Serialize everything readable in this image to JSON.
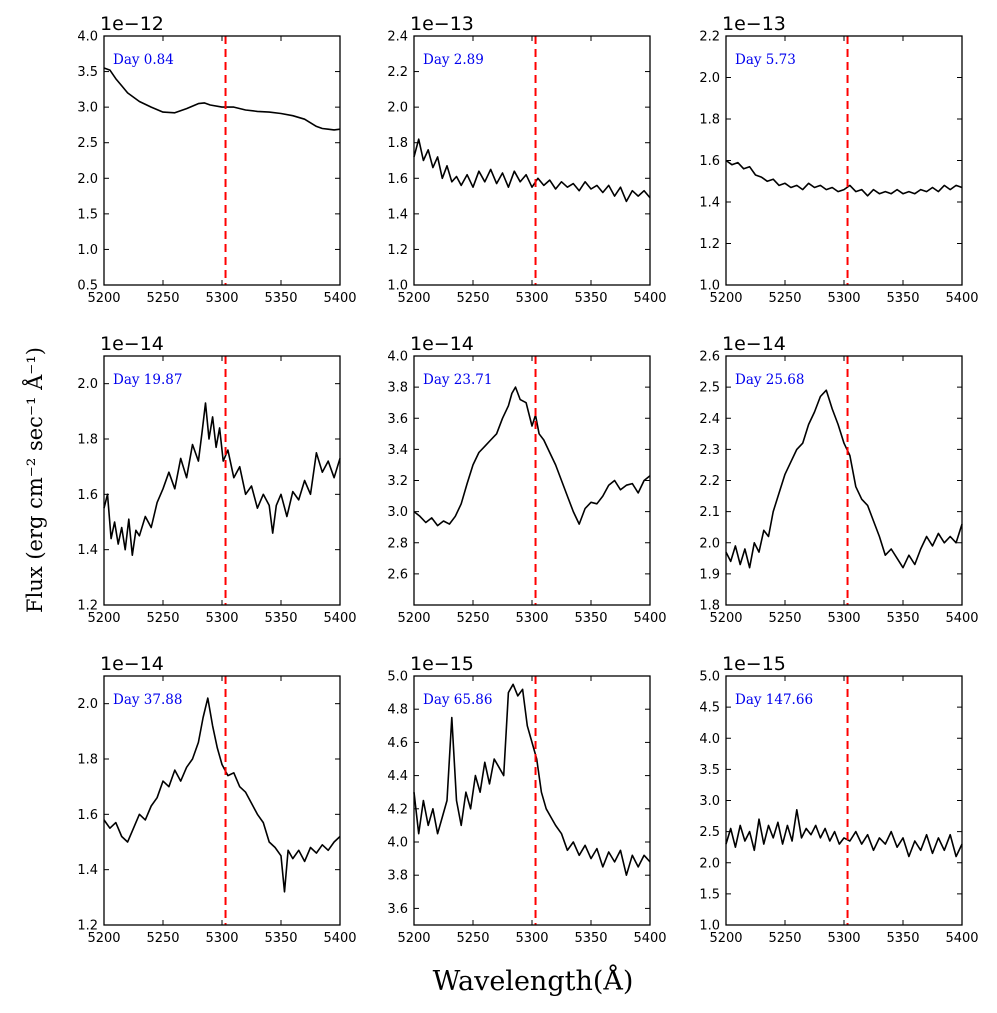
{
  "figure": {
    "xlabel": "Wavelength(Å)",
    "ylabel": "Flux (erg cm⁻² sec⁻¹ Å⁻¹)",
    "marker_color": "#ff0000",
    "line_color": "#000000",
    "label_color": "#0000ee"
  },
  "chart_data": [
    {
      "type": "line",
      "label": "Day 0.84",
      "exponent": "1e−12",
      "xlim": [
        5200,
        5400
      ],
      "ylim": [
        0.5,
        4.0
      ],
      "xticks": [
        5200,
        5250,
        5300,
        5350,
        5400
      ],
      "yticks": [
        "0.5",
        "1.0",
        "1.5",
        "2.0",
        "2.5",
        "3.0",
        "3.5",
        "4.0"
      ],
      "marker_x": 5303,
      "x": [
        5200,
        5205,
        5210,
        5215,
        5220,
        5230,
        5240,
        5250,
        5260,
        5270,
        5280,
        5285,
        5290,
        5300,
        5310,
        5320,
        5330,
        5340,
        5350,
        5360,
        5370,
        5380,
        5385,
        5390,
        5395,
        5400
      ],
      "y": [
        3.55,
        3.52,
        3.4,
        3.3,
        3.2,
        3.08,
        3.0,
        2.93,
        2.92,
        2.98,
        3.05,
        3.06,
        3.03,
        3.0,
        3.0,
        2.96,
        2.94,
        2.93,
        2.91,
        2.88,
        2.83,
        2.73,
        2.7,
        2.69,
        2.68,
        2.69
      ]
    },
    {
      "type": "line",
      "label": "Day 2.89",
      "exponent": "1e−13",
      "xlim": [
        5200,
        5400
      ],
      "ylim": [
        1.0,
        2.4
      ],
      "xticks": [
        5200,
        5250,
        5300,
        5350,
        5400
      ],
      "yticks": [
        "1.0",
        "1.2",
        "1.4",
        "1.6",
        "1.8",
        "2.0",
        "2.2",
        "2.4"
      ],
      "marker_x": 5303,
      "x": [
        5200,
        5204,
        5208,
        5212,
        5216,
        5220,
        5224,
        5228,
        5232,
        5236,
        5240,
        5245,
        5250,
        5255,
        5260,
        5265,
        5270,
        5275,
        5280,
        5285,
        5290,
        5295,
        5300,
        5305,
        5310,
        5315,
        5320,
        5325,
        5330,
        5335,
        5340,
        5345,
        5350,
        5355,
        5360,
        5365,
        5370,
        5375,
        5380,
        5385,
        5390,
        5395,
        5400
      ],
      "y": [
        1.72,
        1.82,
        1.7,
        1.76,
        1.66,
        1.72,
        1.6,
        1.67,
        1.58,
        1.61,
        1.56,
        1.62,
        1.55,
        1.64,
        1.58,
        1.65,
        1.57,
        1.63,
        1.55,
        1.64,
        1.58,
        1.62,
        1.55,
        1.6,
        1.56,
        1.59,
        1.54,
        1.58,
        1.55,
        1.57,
        1.53,
        1.58,
        1.54,
        1.56,
        1.52,
        1.56,
        1.5,
        1.55,
        1.47,
        1.53,
        1.5,
        1.53,
        1.49
      ]
    },
    {
      "type": "line",
      "label": "Day 5.73",
      "exponent": "1e−13",
      "xlim": [
        5200,
        5400
      ],
      "ylim": [
        1.0,
        2.2
      ],
      "xticks": [
        5200,
        5250,
        5300,
        5350,
        5400
      ],
      "yticks": [
        "1.0",
        "1.2",
        "1.4",
        "1.6",
        "1.8",
        "2.0",
        "2.2"
      ],
      "marker_x": 5303,
      "x": [
        5200,
        5205,
        5210,
        5215,
        5220,
        5225,
        5230,
        5235,
        5240,
        5245,
        5250,
        5255,
        5260,
        5265,
        5270,
        5275,
        5280,
        5285,
        5290,
        5295,
        5300,
        5305,
        5310,
        5315,
        5320,
        5325,
        5330,
        5335,
        5340,
        5345,
        5350,
        5355,
        5360,
        5365,
        5370,
        5375,
        5380,
        5385,
        5390,
        5395,
        5400
      ],
      "y": [
        1.6,
        1.58,
        1.59,
        1.56,
        1.57,
        1.53,
        1.52,
        1.5,
        1.51,
        1.48,
        1.49,
        1.47,
        1.48,
        1.46,
        1.49,
        1.47,
        1.48,
        1.46,
        1.47,
        1.45,
        1.46,
        1.48,
        1.45,
        1.46,
        1.43,
        1.46,
        1.44,
        1.45,
        1.44,
        1.46,
        1.44,
        1.45,
        1.44,
        1.46,
        1.45,
        1.47,
        1.45,
        1.48,
        1.46,
        1.48,
        1.47
      ]
    },
    {
      "type": "line",
      "label": "Day 19.87",
      "exponent": "1e−14",
      "xlim": [
        5200,
        5400
      ],
      "ylim": [
        1.2,
        2.1
      ],
      "xticks": [
        5200,
        5250,
        5300,
        5350,
        5400
      ],
      "yticks": [
        "1.2",
        "1.4",
        "1.6",
        "1.8",
        "2.0"
      ],
      "marker_x": 5303,
      "x": [
        5200,
        5203,
        5206,
        5209,
        5212,
        5215,
        5218,
        5221,
        5224,
        5227,
        5230,
        5235,
        5240,
        5245,
        5250,
        5255,
        5260,
        5265,
        5270,
        5275,
        5280,
        5283,
        5286,
        5289,
        5292,
        5295,
        5298,
        5301,
        5305,
        5310,
        5315,
        5320,
        5325,
        5330,
        5335,
        5340,
        5343,
        5346,
        5350,
        5355,
        5360,
        5365,
        5370,
        5375,
        5380,
        5385,
        5390,
        5395,
        5400
      ],
      "y": [
        1.55,
        1.6,
        1.44,
        1.5,
        1.42,
        1.48,
        1.4,
        1.51,
        1.38,
        1.47,
        1.45,
        1.52,
        1.48,
        1.57,
        1.62,
        1.68,
        1.62,
        1.73,
        1.66,
        1.78,
        1.72,
        1.82,
        1.93,
        1.8,
        1.88,
        1.77,
        1.84,
        1.72,
        1.76,
        1.66,
        1.7,
        1.6,
        1.63,
        1.55,
        1.6,
        1.56,
        1.46,
        1.56,
        1.6,
        1.52,
        1.61,
        1.58,
        1.65,
        1.6,
        1.75,
        1.68,
        1.72,
        1.66,
        1.73
      ]
    },
    {
      "type": "line",
      "label": "Day 23.71",
      "exponent": "1e−14",
      "xlim": [
        5200,
        5400
      ],
      "ylim": [
        2.4,
        4.0
      ],
      "xticks": [
        5200,
        5250,
        5300,
        5350,
        5400
      ],
      "yticks": [
        "2.6",
        "2.8",
        "3.0",
        "3.2",
        "3.4",
        "3.6",
        "3.8",
        "4.0"
      ],
      "marker_x": 5303,
      "x": [
        5200,
        5205,
        5210,
        5215,
        5220,
        5225,
        5230,
        5235,
        5240,
        5245,
        5250,
        5255,
        5260,
        5265,
        5270,
        5275,
        5280,
        5283,
        5286,
        5290,
        5295,
        5300,
        5303,
        5306,
        5310,
        5315,
        5320,
        5325,
        5330,
        5335,
        5340,
        5345,
        5350,
        5355,
        5360,
        5365,
        5370,
        5375,
        5380,
        5385,
        5390,
        5395,
        5400
      ],
      "y": [
        3.0,
        2.97,
        2.93,
        2.96,
        2.91,
        2.94,
        2.92,
        2.97,
        3.05,
        3.18,
        3.3,
        3.38,
        3.42,
        3.46,
        3.5,
        3.6,
        3.68,
        3.76,
        3.8,
        3.72,
        3.7,
        3.55,
        3.62,
        3.5,
        3.46,
        3.38,
        3.3,
        3.2,
        3.1,
        3.0,
        2.92,
        3.02,
        3.06,
        3.05,
        3.1,
        3.17,
        3.2,
        3.14,
        3.17,
        3.18,
        3.12,
        3.2,
        3.23
      ]
    },
    {
      "type": "line",
      "label": "Day 25.68",
      "exponent": "1e−14",
      "xlim": [
        5200,
        5400
      ],
      "ylim": [
        1.8,
        2.6
      ],
      "xticks": [
        5200,
        5250,
        5300,
        5350,
        5400
      ],
      "yticks": [
        "1.8",
        "1.9",
        "2.0",
        "2.1",
        "2.2",
        "2.3",
        "2.4",
        "2.5",
        "2.6"
      ],
      "marker_x": 5303,
      "x": [
        5200,
        5204,
        5208,
        5212,
        5216,
        5220,
        5224,
        5228,
        5232,
        5236,
        5240,
        5245,
        5250,
        5255,
        5260,
        5265,
        5270,
        5275,
        5280,
        5285,
        5290,
        5295,
        5300,
        5305,
        5310,
        5315,
        5320,
        5325,
        5330,
        5335,
        5340,
        5345,
        5350,
        5355,
        5360,
        5365,
        5370,
        5375,
        5380,
        5385,
        5390,
        5395,
        5400
      ],
      "y": [
        1.97,
        1.94,
        1.99,
        1.93,
        1.98,
        1.92,
        2.0,
        1.97,
        2.04,
        2.02,
        2.1,
        2.16,
        2.22,
        2.26,
        2.3,
        2.32,
        2.38,
        2.42,
        2.47,
        2.49,
        2.43,
        2.38,
        2.32,
        2.28,
        2.18,
        2.14,
        2.12,
        2.07,
        2.02,
        1.96,
        1.98,
        1.95,
        1.92,
        1.96,
        1.93,
        1.98,
        2.02,
        1.99,
        2.03,
        2.0,
        2.02,
        2.0,
        2.06
      ]
    },
    {
      "type": "line",
      "label": "Day 37.88",
      "exponent": "1e−14",
      "xlim": [
        5200,
        5400
      ],
      "ylim": [
        1.2,
        2.1
      ],
      "xticks": [
        5200,
        5250,
        5300,
        5350,
        5400
      ],
      "yticks": [
        "1.2",
        "1.4",
        "1.6",
        "1.8",
        "2.0"
      ],
      "marker_x": 5303,
      "x": [
        5200,
        5205,
        5210,
        5215,
        5220,
        5225,
        5230,
        5235,
        5240,
        5245,
        5250,
        5255,
        5260,
        5265,
        5270,
        5275,
        5280,
        5284,
        5288,
        5292,
        5296,
        5300,
        5305,
        5310,
        5315,
        5320,
        5325,
        5330,
        5335,
        5340,
        5345,
        5350,
        5353,
        5356,
        5360,
        5365,
        5370,
        5375,
        5380,
        5385,
        5390,
        5395,
        5400
      ],
      "y": [
        1.58,
        1.55,
        1.57,
        1.52,
        1.5,
        1.55,
        1.6,
        1.58,
        1.63,
        1.66,
        1.72,
        1.7,
        1.76,
        1.72,
        1.77,
        1.8,
        1.86,
        1.95,
        2.02,
        1.92,
        1.84,
        1.78,
        1.74,
        1.75,
        1.7,
        1.68,
        1.64,
        1.6,
        1.57,
        1.5,
        1.48,
        1.45,
        1.32,
        1.47,
        1.44,
        1.47,
        1.43,
        1.48,
        1.46,
        1.49,
        1.47,
        1.5,
        1.52
      ]
    },
    {
      "type": "line",
      "label": "Day 65.86",
      "exponent": "1e−15",
      "xlim": [
        5200,
        5400
      ],
      "ylim": [
        3.5,
        5.0
      ],
      "xticks": [
        5200,
        5250,
        5300,
        5350,
        5400
      ],
      "yticks": [
        "3.6",
        "3.8",
        "4.0",
        "4.2",
        "4.4",
        "4.6",
        "4.8",
        "5.0"
      ],
      "marker_x": 5303,
      "x": [
        5200,
        5204,
        5208,
        5212,
        5216,
        5220,
        5224,
        5228,
        5232,
        5236,
        5240,
        5244,
        5248,
        5252,
        5256,
        5260,
        5264,
        5268,
        5272,
        5276,
        5280,
        5284,
        5288,
        5292,
        5296,
        5300,
        5304,
        5308,
        5312,
        5316,
        5320,
        5325,
        5330,
        5335,
        5340,
        5345,
        5350,
        5355,
        5360,
        5365,
        5370,
        5375,
        5380,
        5385,
        5390,
        5395,
        5400
      ],
      "y": [
        4.3,
        4.05,
        4.25,
        4.1,
        4.2,
        4.05,
        4.15,
        4.25,
        4.75,
        4.25,
        4.1,
        4.3,
        4.2,
        4.4,
        4.3,
        4.48,
        4.35,
        4.5,
        4.45,
        4.4,
        4.9,
        4.95,
        4.88,
        4.92,
        4.7,
        4.6,
        4.5,
        4.3,
        4.2,
        4.15,
        4.1,
        4.05,
        3.95,
        4.0,
        3.92,
        3.98,
        3.9,
        3.96,
        3.85,
        3.94,
        3.88,
        3.95,
        3.8,
        3.92,
        3.85,
        3.92,
        3.88
      ]
    },
    {
      "type": "line",
      "label": "Day 147.66",
      "exponent": "1e−15",
      "xlim": [
        5200,
        5400
      ],
      "ylim": [
        1.0,
        5.0
      ],
      "xticks": [
        5200,
        5250,
        5300,
        5350,
        5400
      ],
      "yticks": [
        "1.0",
        "1.5",
        "2.0",
        "2.5",
        "3.0",
        "3.5",
        "4.0",
        "4.5",
        "5.0"
      ],
      "marker_x": 5303,
      "x": [
        5200,
        5204,
        5208,
        5212,
        5216,
        5220,
        5224,
        5228,
        5232,
        5236,
        5240,
        5244,
        5248,
        5252,
        5256,
        5260,
        5264,
        5268,
        5272,
        5276,
        5280,
        5284,
        5288,
        5292,
        5296,
        5300,
        5305,
        5310,
        5315,
        5320,
        5325,
        5330,
        5335,
        5340,
        5345,
        5350,
        5355,
        5360,
        5365,
        5370,
        5375,
        5380,
        5385,
        5390,
        5395,
        5400
      ],
      "y": [
        2.3,
        2.55,
        2.25,
        2.6,
        2.35,
        2.5,
        2.2,
        2.7,
        2.3,
        2.6,
        2.4,
        2.65,
        2.3,
        2.6,
        2.35,
        2.85,
        2.4,
        2.55,
        2.45,
        2.6,
        2.4,
        2.55,
        2.35,
        2.5,
        2.3,
        2.4,
        2.35,
        2.5,
        2.3,
        2.45,
        2.2,
        2.4,
        2.3,
        2.5,
        2.25,
        2.4,
        2.1,
        2.35,
        2.2,
        2.45,
        2.15,
        2.4,
        2.2,
        2.45,
        2.1,
        2.3
      ]
    }
  ]
}
